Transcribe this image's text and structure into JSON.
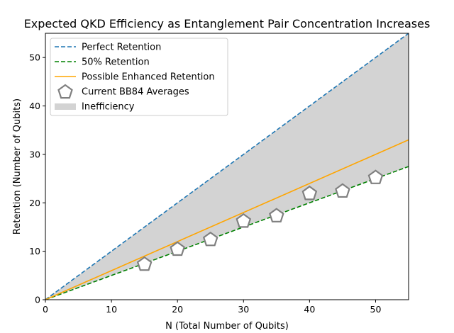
{
  "chart_data": {
    "type": "line",
    "title": "Expected QKD Efficiency as Entanglement Pair Concentration Increases",
    "xlabel": "N (Total Number of Qubits)",
    "ylabel": "Retention (Number of Qubits)",
    "xlim": [
      0,
      55
    ],
    "ylim": [
      0,
      55
    ],
    "xticks": [
      0,
      10,
      20,
      30,
      40,
      50
    ],
    "yticks": [
      0,
      10,
      20,
      30,
      40,
      50
    ],
    "grid": false,
    "legend_position": "top-left",
    "series": [
      {
        "name": "Perfect Retention",
        "style": "dashed",
        "color": "#1f77b4",
        "x": [
          0,
          55
        ],
        "y": [
          0,
          55
        ]
      },
      {
        "name": "50% Retention",
        "style": "dashed",
        "color": "#008000",
        "x": [
          0,
          55
        ],
        "y": [
          0,
          27.5
        ]
      },
      {
        "name": "Possible Enhanced Retention",
        "style": "solid",
        "color": "#ffa500",
        "x": [
          0,
          55
        ],
        "y": [
          0,
          33
        ]
      },
      {
        "name": "Current BB84 Averages",
        "style": "marker-pentagon",
        "color": "#808080",
        "x": [
          15,
          20,
          25,
          30,
          35,
          40,
          45,
          50
        ],
        "y": [
          7.3,
          10.4,
          12.4,
          16.2,
          17.3,
          21.9,
          22.4,
          25.2
        ]
      }
    ],
    "fill_between": {
      "name": "Inefficiency",
      "color": "#d3d3d3",
      "lower": "50% Retention",
      "upper": "Perfect Retention"
    }
  }
}
